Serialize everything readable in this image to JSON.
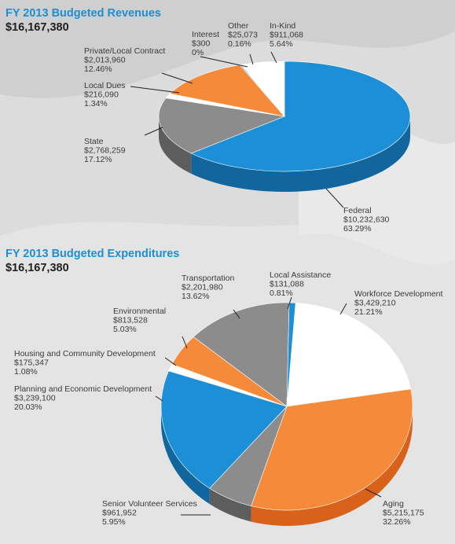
{
  "colors": {
    "blue": "#1d8fd6",
    "orange": "#f58a3b",
    "gray": "#8c8c8c",
    "white": "#ffffff",
    "title_blue": "#1b8fd2"
  },
  "revenues": {
    "title": "FY 2013 Budgeted Revenues",
    "total": "$16,167,380",
    "chart_data": {
      "type": "pie",
      "title": "FY 2013 Budgeted Revenues",
      "total": 16167380,
      "slices": [
        {
          "name": "Federal",
          "amount": "$10,232,630",
          "percent": "63.29%",
          "value": 10232630,
          "color": "blue"
        },
        {
          "name": "State",
          "amount": "$2,768,259",
          "percent": "17.12%",
          "value": 2768259,
          "color": "gray"
        },
        {
          "name": "Local Dues",
          "amount": "$216,090",
          "percent": "1.34%",
          "value": 216090,
          "color": "white"
        },
        {
          "name": "Private/Local Contract",
          "amount": "$2,013,960",
          "percent": "12.46%",
          "value": 2013960,
          "color": "orange"
        },
        {
          "name": "Interest",
          "amount": "$300",
          "percent": "0%",
          "value": 300,
          "color": "gray"
        },
        {
          "name": "Other",
          "amount": "$25,073",
          "percent": "0.16%",
          "value": 25073,
          "color": "blue"
        },
        {
          "name": "In-Kind",
          "amount": "$911,068",
          "percent": "5.64%",
          "value": 911068,
          "color": "white"
        }
      ]
    }
  },
  "expenditures": {
    "title": "FY 2013 Budgeted Expenditures",
    "total": "$16,167,380",
    "chart_data": {
      "type": "pie",
      "title": "FY 2013 Budgeted Expenditures",
      "total": 16167380,
      "slices": [
        {
          "name": "Workforce Development",
          "amount": "$3,429,210",
          "percent": "21.21%",
          "value": 3429210,
          "color": "white"
        },
        {
          "name": "Aging",
          "amount": "$5,215,175",
          "percent": "32.26%",
          "value": 5215175,
          "color": "orange"
        },
        {
          "name": "Senior Volunteer Services",
          "amount": "$961,952",
          "percent": "5.95%",
          "value": 961952,
          "color": "gray"
        },
        {
          "name": "Planning and Economic Development",
          "amount": "$3,239,100",
          "percent": "20.03%",
          "value": 3239100,
          "color": "blue"
        },
        {
          "name": "Housing and Community Development",
          "amount": "$175,347",
          "percent": "1.08%",
          "value": 175347,
          "color": "white"
        },
        {
          "name": "Environmental",
          "amount": "$813,528",
          "percent": "5.03%",
          "value": 813528,
          "color": "orange"
        },
        {
          "name": "Transportation",
          "amount": "$2,201,980",
          "percent": "13.62%",
          "value": 2201980,
          "color": "gray"
        },
        {
          "name": "Local Assistance",
          "amount": "$131,088",
          "percent": "0.81%",
          "value": 131088,
          "color": "blue"
        }
      ]
    }
  }
}
